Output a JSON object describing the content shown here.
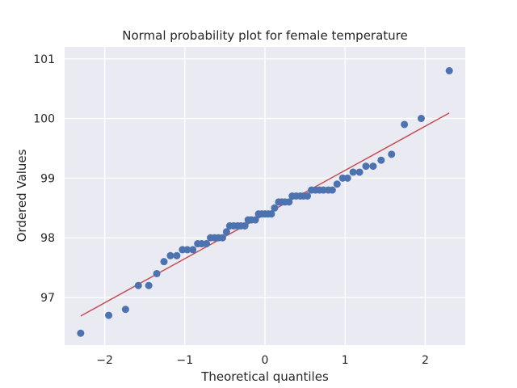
{
  "chart_data": {
    "type": "scatter",
    "title": "Normal probability plot for female temperature",
    "xlabel": "Theoretical quantiles",
    "ylabel": "Ordered Values",
    "xlim": [
      -2.5,
      2.5
    ],
    "ylim": [
      96.2,
      101.2
    ],
    "x_ticks": [
      -2,
      -1,
      0,
      1,
      2
    ],
    "x_tick_labels": [
      "−2",
      "−1",
      "0",
      "1",
      "2"
    ],
    "y_ticks": [
      97,
      98,
      99,
      100,
      101
    ],
    "y_tick_labels": [
      "97",
      "98",
      "99",
      "100",
      "101"
    ],
    "grid": true,
    "background": "#eaeaf2",
    "point_color": "#4c72b0",
    "line_color": "#c44e52",
    "fit_line": {
      "slope": 0.74,
      "intercept": 98.39,
      "x_range": [
        -2.3,
        2.3
      ]
    },
    "points": [
      [
        -2.3,
        96.4
      ],
      [
        -1.95,
        96.7
      ],
      [
        -1.74,
        96.8
      ],
      [
        -1.58,
        97.2
      ],
      [
        -1.45,
        97.2
      ],
      [
        -1.35,
        97.4
      ],
      [
        -1.26,
        97.6
      ],
      [
        -1.18,
        97.7
      ],
      [
        -1.1,
        97.7
      ],
      [
        -1.03,
        97.8
      ],
      [
        -0.97,
        97.8
      ],
      [
        -0.9,
        97.8
      ],
      [
        -0.84,
        97.9
      ],
      [
        -0.79,
        97.9
      ],
      [
        -0.73,
        97.9
      ],
      [
        -0.68,
        98.0
      ],
      [
        -0.63,
        98.0
      ],
      [
        -0.58,
        98.0
      ],
      [
        -0.53,
        98.0
      ],
      [
        -0.48,
        98.1
      ],
      [
        -0.44,
        98.2
      ],
      [
        -0.39,
        98.2
      ],
      [
        -0.34,
        98.2
      ],
      [
        -0.3,
        98.2
      ],
      [
        -0.25,
        98.2
      ],
      [
        -0.21,
        98.3
      ],
      [
        -0.17,
        98.3
      ],
      [
        -0.12,
        98.3
      ],
      [
        -0.08,
        98.4
      ],
      [
        -0.04,
        98.4
      ],
      [
        0.0,
        98.4
      ],
      [
        0.04,
        98.4
      ],
      [
        0.08,
        98.4
      ],
      [
        0.12,
        98.5
      ],
      [
        0.17,
        98.6
      ],
      [
        0.21,
        98.6
      ],
      [
        0.25,
        98.6
      ],
      [
        0.3,
        98.6
      ],
      [
        0.34,
        98.7
      ],
      [
        0.39,
        98.7
      ],
      [
        0.44,
        98.7
      ],
      [
        0.48,
        98.7
      ],
      [
        0.53,
        98.7
      ],
      [
        0.58,
        98.8
      ],
      [
        0.63,
        98.8
      ],
      [
        0.68,
        98.8
      ],
      [
        0.73,
        98.8
      ],
      [
        0.79,
        98.8
      ],
      [
        0.84,
        98.8
      ],
      [
        0.9,
        98.9
      ],
      [
        0.97,
        99.0
      ],
      [
        1.03,
        99.0
      ],
      [
        1.1,
        99.1
      ],
      [
        1.18,
        99.1
      ],
      [
        1.26,
        99.2
      ],
      [
        1.35,
        99.2
      ],
      [
        1.45,
        99.3
      ],
      [
        1.58,
        99.4
      ],
      [
        1.74,
        99.9
      ],
      [
        1.95,
        100.0
      ],
      [
        2.3,
        100.8
      ]
    ]
  }
}
